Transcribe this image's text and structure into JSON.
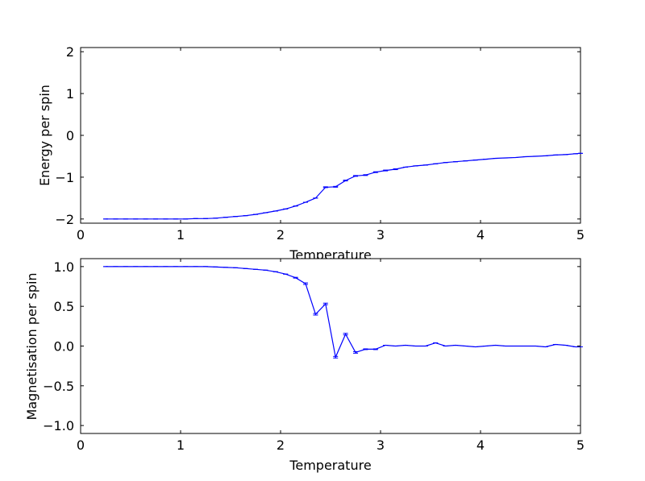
{
  "chart_data": [
    {
      "type": "line",
      "xlabel": "Temperature",
      "ylabel": "Energy per spin",
      "xlim": [
        0,
        5
      ],
      "ylim": [
        -2.1,
        2.1
      ],
      "x_ticks": [
        "0",
        "1",
        "2",
        "3",
        "4",
        "5"
      ],
      "y_ticks": [
        "−2",
        "−1",
        "0",
        "1",
        "2"
      ],
      "x_tick_values": [
        0,
        1,
        2,
        3,
        4,
        5
      ],
      "y_tick_values": [
        -2,
        -1,
        0,
        1,
        2
      ],
      "grid": false,
      "series_color": "#0000ff",
      "error_bars": true,
      "series": [
        {
          "x": [
            0.25,
            0.35,
            0.45,
            0.55,
            0.65,
            0.75,
            0.85,
            0.95,
            1.05,
            1.15,
            1.25,
            1.35,
            1.45,
            1.55,
            1.65,
            1.75,
            1.85,
            1.95,
            2.05,
            2.15,
            2.25,
            2.35,
            2.45,
            2.55,
            2.65,
            2.75,
            2.85,
            2.95,
            3.05,
            3.15,
            3.25,
            3.35,
            3.45,
            3.55,
            3.65,
            3.75,
            3.85,
            3.95,
            4.05,
            4.15,
            4.25,
            4.35,
            4.45,
            4.55,
            4.65,
            4.75,
            4.85,
            4.95,
            5.0
          ],
          "y": [
            -2.0,
            -2.0,
            -2.0,
            -2.0,
            -2.0,
            -2.0,
            -2.0,
            -2.0,
            -2.0,
            -1.99,
            -1.99,
            -1.98,
            -1.96,
            -1.94,
            -1.92,
            -1.89,
            -1.85,
            -1.81,
            -1.76,
            -1.69,
            -1.6,
            -1.5,
            -1.24,
            -1.23,
            -1.08,
            -0.97,
            -0.95,
            -0.88,
            -0.84,
            -0.81,
            -0.76,
            -0.73,
            -0.71,
            -0.68,
            -0.65,
            -0.63,
            -0.61,
            -0.59,
            -0.57,
            -0.55,
            -0.54,
            -0.53,
            -0.51,
            -0.5,
            -0.49,
            -0.47,
            -0.46,
            -0.44,
            -0.43
          ],
          "err": [
            0.0,
            0.0,
            0.0,
            0.0,
            0.0,
            0.0,
            0.0,
            0.0,
            0.0,
            0.0,
            0.0,
            0.0,
            0.0,
            0.0,
            0.0,
            0.0,
            0.0,
            0.0,
            0.0,
            0.0,
            0.0,
            0.0,
            0.01,
            0.01,
            0.01,
            0.01,
            0.01,
            0.01,
            0.01,
            0.01,
            0.0,
            0.0,
            0.0,
            0.0,
            0.0,
            0.0,
            0.0,
            0.0,
            0.0,
            0.0,
            0.0,
            0.0,
            0.0,
            0.0,
            0.0,
            0.0,
            0.0,
            0.0,
            0.0
          ]
        }
      ]
    },
    {
      "type": "line",
      "xlabel": "Temperature",
      "ylabel": "Magnetisation per spin",
      "xlim": [
        0,
        5
      ],
      "ylim": [
        -1.1,
        1.1
      ],
      "x_ticks": [
        "0",
        "1",
        "2",
        "3",
        "4",
        "5"
      ],
      "y_ticks": [
        "−1.0",
        "−0.5",
        "0.0",
        "0.5",
        "1.0"
      ],
      "x_tick_values": [
        0,
        1,
        2,
        3,
        4,
        5
      ],
      "y_tick_values": [
        -1.0,
        -0.5,
        0.0,
        0.5,
        1.0
      ],
      "grid": false,
      "series_color": "#0000ff",
      "error_bars": true,
      "series": [
        {
          "x": [
            0.25,
            0.35,
            0.45,
            0.55,
            0.65,
            0.75,
            0.85,
            0.95,
            1.05,
            1.15,
            1.25,
            1.35,
            1.45,
            1.55,
            1.65,
            1.75,
            1.85,
            1.95,
            2.05,
            2.15,
            2.25,
            2.35,
            2.45,
            2.55,
            2.65,
            2.75,
            2.85,
            2.95,
            3.05,
            3.15,
            3.25,
            3.35,
            3.45,
            3.55,
            3.65,
            3.75,
            3.85,
            3.95,
            4.05,
            4.15,
            4.25,
            4.35,
            4.45,
            4.55,
            4.65,
            4.75,
            4.85,
            4.95,
            5.0
          ],
          "y": [
            1.0,
            1.0,
            1.0,
            1.0,
            1.0,
            1.0,
            1.0,
            1.0,
            1.0,
            1.0,
            1.0,
            0.995,
            0.99,
            0.985,
            0.975,
            0.965,
            0.955,
            0.935,
            0.905,
            0.86,
            0.785,
            0.4,
            0.53,
            -0.14,
            0.15,
            -0.08,
            -0.04,
            -0.04,
            0.01,
            0.0,
            0.01,
            0.0,
            0.0,
            0.04,
            0.0,
            0.01,
            0.0,
            -0.01,
            0.0,
            0.01,
            0.0,
            0.0,
            0.0,
            0.0,
            -0.01,
            0.02,
            0.01,
            -0.01,
            -0.01
          ],
          "err": [
            0.0,
            0.0,
            0.0,
            0.0,
            0.0,
            0.0,
            0.0,
            0.0,
            0.0,
            0.0,
            0.0,
            0.0,
            0.0,
            0.0,
            0.0,
            0.0,
            0.0,
            0.0,
            0.0,
            0.005,
            0.01,
            0.01,
            0.01,
            0.01,
            0.01,
            0.01,
            0.005,
            0.005,
            0.0,
            0.0,
            0.0,
            0.0,
            0.0,
            0.0,
            0.0,
            0.0,
            0.0,
            0.0,
            0.0,
            0.0,
            0.0,
            0.0,
            0.0,
            0.0,
            0.0,
            0.0,
            0.0,
            0.0,
            0.0
          ]
        }
      ]
    }
  ]
}
